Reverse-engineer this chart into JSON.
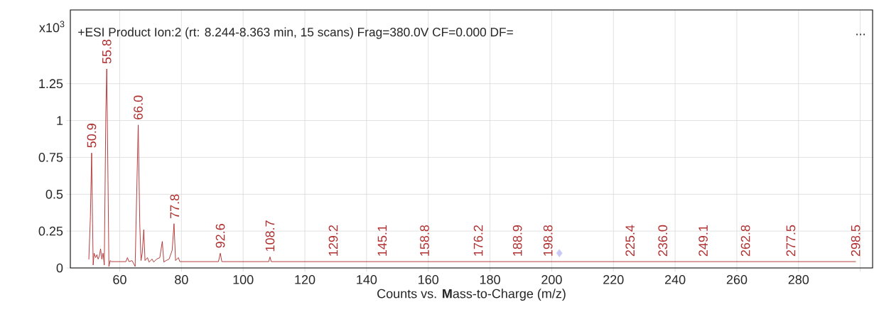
{
  "chart_data": {
    "type": "line",
    "title": "+ESI Product Ion:2 (rt: 8.244-8.363 min, 15 scans) Frag=380.0V CF=0.000 DF=",
    "xlabel": "Counts vs. **M**ass-to-Charge (m/z)",
    "xlim": [
      44,
      304
    ],
    "xticks": [
      60,
      80,
      100,
      120,
      140,
      160,
      180,
      200,
      220,
      240,
      260,
      280,
      {
        "value": 300,
        "label": null
      }
    ],
    "ylim": [
      0,
      1.75
    ],
    "yticks": [
      0,
      0.25,
      0.5,
      0.75,
      1,
      1.25
    ],
    "grid": true,
    "series": [
      {
        "color": "#b03030",
        "x": [
          50.0,
          50.5,
          50.9,
          51.2,
          51.4,
          51.7,
          52.2,
          52.6,
          53.0,
          53.4,
          53.8,
          54.2,
          54.6,
          55.0,
          55.5,
          55.8,
          56.2,
          56.5,
          56.9,
          57.3,
          62.0,
          62.5,
          63.0,
          64.0,
          65.0,
          65.5,
          66.0,
          66.5,
          66.9,
          67.3,
          67.8,
          68.2,
          69.0,
          69.5,
          70.5,
          71.0,
          72.0,
          73.0,
          73.8,
          74.3,
          75.0,
          76.0,
          77.0,
          77.6,
          78.1,
          79.0,
          79.5,
          92.0,
          92.6,
          93.1,
          108.3,
          108.7,
          109.1,
          298.5
        ],
        "values": [
          0.06,
          0.35,
          0.78,
          0.3,
          0.02,
          0.1,
          0.07,
          0.09,
          0.06,
          0.08,
          0.13,
          0.06,
          0.1,
          0.02,
          1.05,
          1.35,
          0.6,
          0.01,
          0.05,
          0.043,
          0.043,
          0.07,
          0.043,
          0.05,
          0.01,
          0.5,
          0.97,
          0.3,
          0.05,
          0.1,
          0.26,
          0.05,
          0.07,
          0.04,
          0.06,
          0.04,
          0.06,
          0.07,
          0.18,
          0.04,
          0.05,
          0.06,
          0.12,
          0.3,
          0.05,
          0.07,
          0.043,
          0.043,
          0.1,
          0.043,
          0.043,
          0.075,
          0.043,
          0.043
        ]
      },
      {
        "type": "scatter",
        "marker": "diamond",
        "color": "#c8c8f5",
        "x": [
          202.5
        ],
        "values": [
          0.1
        ]
      }
    ],
    "annotations": [
      "x10$^{3}$",
      "...",
      {
        "text": "50.9",
        "x": 50.9,
        "y": 0.78
      },
      {
        "text": "55.8",
        "x": 55.8,
        "y": 1.35
      },
      {
        "text": "66.0",
        "x": 66.0,
        "y": 0.97
      },
      {
        "text": "77.8",
        "x": 77.8,
        "y": 0.3
      },
      {
        "text": "92.6",
        "x": 92.6,
        "y": 0.1
      },
      {
        "text": "108.7",
        "x": 108.7,
        "y": 0.075
      },
      {
        "text": "129.2",
        "x": 129.2,
        "y": 0.043
      },
      {
        "text": "145.1",
        "x": 145.1,
        "y": 0.043
      },
      {
        "text": "158.8",
        "x": 158.8,
        "y": 0.043
      },
      {
        "text": "176.2",
        "x": 176.2,
        "y": 0.043
      },
      {
        "text": "188.9",
        "x": 188.9,
        "y": 0.043
      },
      {
        "text": "198.8",
        "x": 198.8,
        "y": 0.043
      },
      {
        "text": "225.4",
        "x": 225.4,
        "y": 0.043
      },
      {
        "text": "236.0",
        "x": 236.0,
        "y": 0.043
      },
      {
        "text": "249.1",
        "x": 249.1,
        "y": 0.043
      },
      {
        "text": "262.8",
        "x": 262.8,
        "y": 0.043
      },
      {
        "text": "277.5",
        "x": 277.5,
        "y": 0.043
      },
      {
        "text": "298.5",
        "x": 298.5,
        "y": 0.043
      }
    ]
  }
}
